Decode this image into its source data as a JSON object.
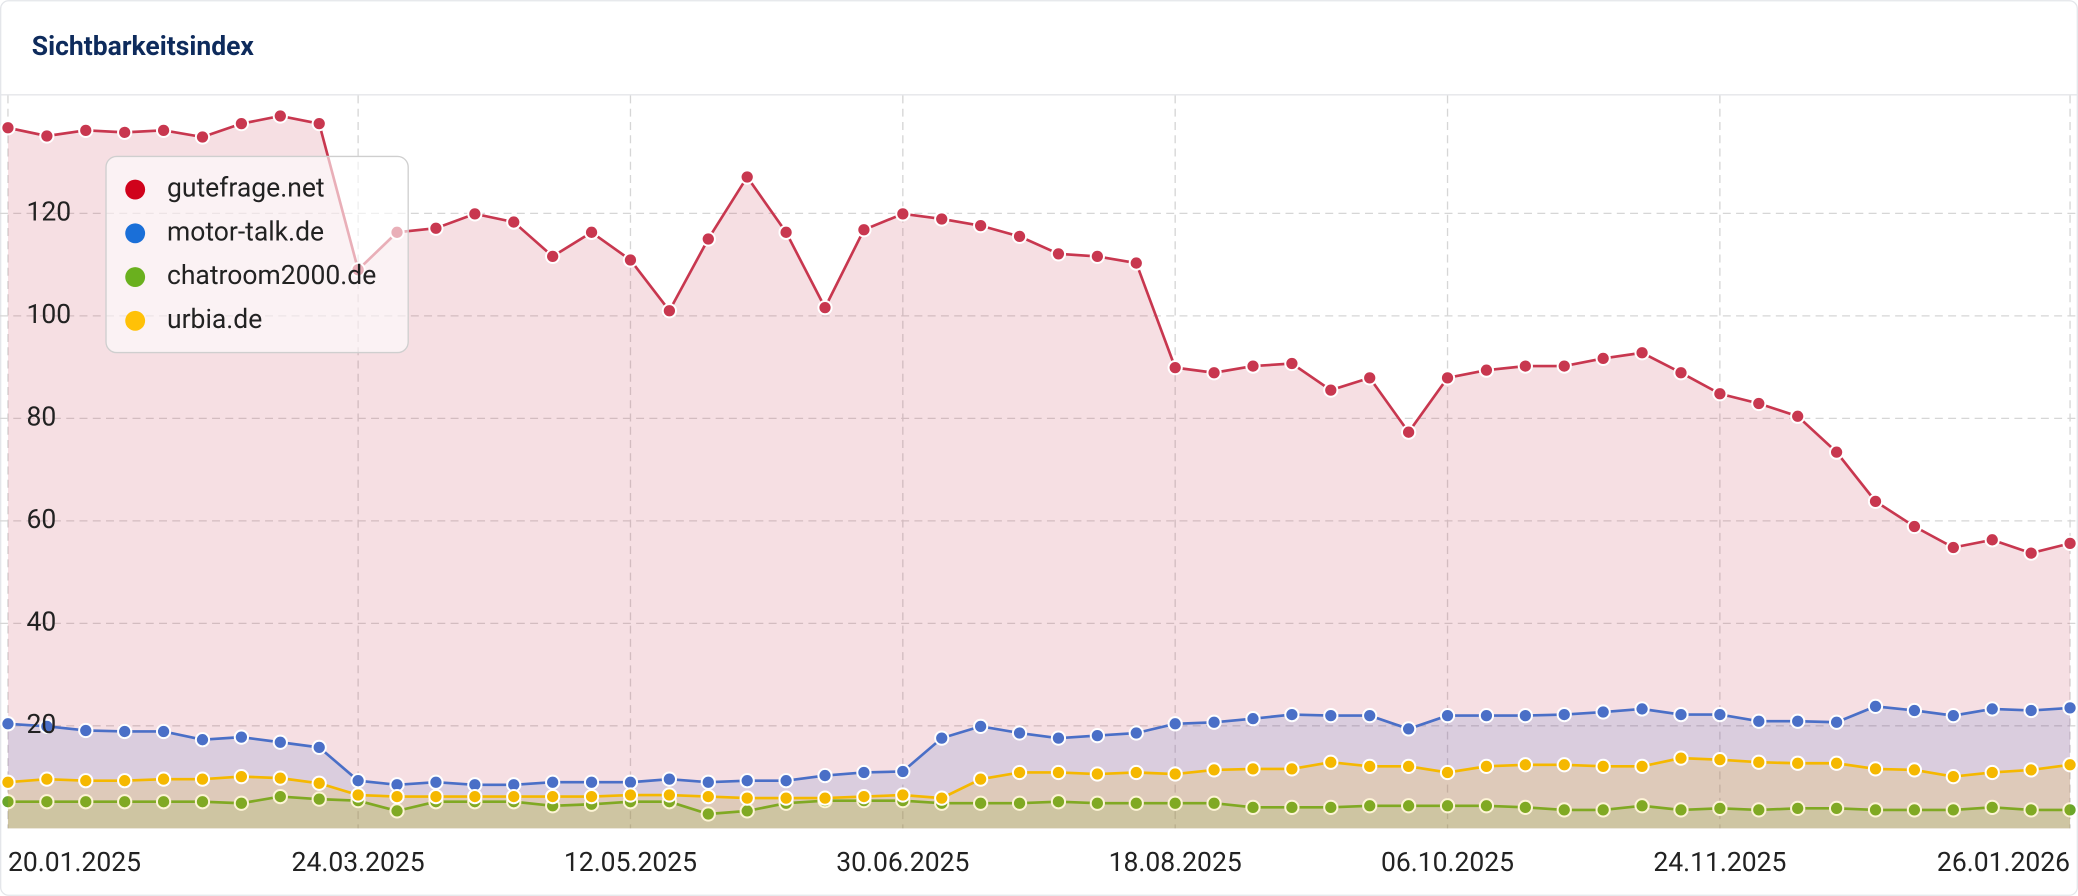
{
  "chart_data": {
    "type": "line",
    "title": "Sichtbarkeitsindex",
    "x": [
      "20.01.2025",
      "27.01.2025",
      "03.02.2025",
      "10.02.2025",
      "17.02.2025",
      "24.02.2025",
      "03.03.2025",
      "10.03.2025",
      "17.03.2025",
      "24.03.2025",
      "31.03.2025",
      "07.04.2025",
      "14.04.2025",
      "21.04.2025",
      "28.04.2025",
      "05.05.2025",
      "12.05.2025",
      "19.05.2025",
      "26.05.2025",
      "02.06.2025",
      "09.06.2025",
      "16.06.2025",
      "23.06.2025",
      "30.06.2025",
      "07.07.2025",
      "14.07.2025",
      "21.07.2025",
      "28.07.2025",
      "04.08.2025",
      "11.08.2025",
      "18.08.2025",
      "25.08.2025",
      "01.09.2025",
      "08.09.2025",
      "15.09.2025",
      "22.09.2025",
      "29.09.2025",
      "06.10.2025",
      "13.10.2025",
      "20.10.2025",
      "27.10.2025",
      "03.11.2025",
      "10.11.2025",
      "17.11.2025",
      "24.11.2025",
      "01.12.2025",
      "08.12.2025",
      "15.12.2025",
      "22.12.2025",
      "29.12.2025",
      "05.01.2026",
      "12.01.2026",
      "19.01.2026",
      "26.01.2026"
    ],
    "xlim": [
      "20.01.2025",
      "26.01.2026"
    ],
    "xticks": [
      "20.01.2025",
      "24.03.2025",
      "12.05.2025",
      "30.06.2025",
      "18.08.2025",
      "06.10.2025",
      "24.11.2025",
      "26.01.2026"
    ],
    "ylim": [
      0,
      143
    ],
    "yticks": [
      20,
      40,
      60,
      80,
      100,
      120
    ],
    "grid": true,
    "legend": "upper left",
    "series": [
      {
        "name": "gutefrage.net",
        "color": "#c8374f",
        "legend_color": "#d0021b",
        "values": [
          136.7,
          135.1,
          136.2,
          135.8,
          136.2,
          134.9,
          137.5,
          139.0,
          137.5,
          109.0,
          116.3,
          117.1,
          119.9,
          118.3,
          111.6,
          116.3,
          110.9,
          101.0,
          115.0,
          127.1,
          116.3,
          101.6,
          116.8,
          119.9,
          118.9,
          117.6,
          115.5,
          112.1,
          111.6,
          110.3,
          89.9,
          88.9,
          90.2,
          90.7,
          85.5,
          87.9,
          77.3,
          87.9,
          89.4,
          90.2,
          90.2,
          91.7,
          92.8,
          88.9,
          84.8,
          82.9,
          80.4,
          73.4,
          63.8,
          58.9,
          54.8,
          56.3,
          53.7,
          55.6
        ]
      },
      {
        "name": "motor-talk.de",
        "color": "#4a6fc7",
        "legend_color": "#1a6fd8",
        "values": [
          20.4,
          19.9,
          19.1,
          18.9,
          18.9,
          17.3,
          17.8,
          16.8,
          15.8,
          9.3,
          8.5,
          9.0,
          8.5,
          8.5,
          9.0,
          9.0,
          9.0,
          9.6,
          9.0,
          9.3,
          9.3,
          10.3,
          10.9,
          11.1,
          17.6,
          19.9,
          18.6,
          17.6,
          18.1,
          18.6,
          20.4,
          20.7,
          21.4,
          22.2,
          22.0,
          22.0,
          19.4,
          22.0,
          22.0,
          22.0,
          22.2,
          22.7,
          23.3,
          22.2,
          22.2,
          20.9,
          20.9,
          20.7,
          23.8,
          23.0,
          22.0,
          23.3,
          23.0,
          23.5
        ]
      },
      {
        "name": "chatroom2000.de",
        "color": "#6aa62a",
        "legend_color": "#6ab01e",
        "values": [
          5.2,
          5.2,
          5.2,
          5.2,
          5.2,
          5.2,
          4.9,
          6.2,
          5.7,
          5.4,
          3.4,
          5.2,
          5.2,
          5.2,
          4.4,
          4.7,
          5.2,
          5.2,
          2.8,
          3.4,
          4.9,
          5.4,
          5.4,
          5.4,
          4.9,
          4.9,
          4.9,
          5.2,
          4.9,
          4.9,
          4.9,
          4.9,
          4.1,
          4.1,
          4.1,
          4.4,
          4.4,
          4.4,
          4.4,
          4.1,
          3.6,
          3.6,
          4.4,
          3.6,
          3.9,
          3.6,
          3.9,
          3.9,
          3.6,
          3.6,
          3.6,
          4.1,
          3.6,
          3.6
        ]
      },
      {
        "name": "urbia.de",
        "color": "#f5b800",
        "legend_color": "#ffc107",
        "values": [
          9.0,
          9.6,
          9.3,
          9.3,
          9.6,
          9.6,
          10.1,
          9.8,
          8.8,
          6.5,
          6.2,
          6.2,
          6.2,
          6.2,
          6.2,
          6.2,
          6.5,
          6.5,
          6.2,
          5.9,
          5.9,
          5.9,
          6.2,
          6.5,
          5.9,
          9.6,
          10.9,
          10.9,
          10.6,
          10.9,
          10.6,
          11.4,
          11.6,
          11.6,
          12.9,
          12.1,
          12.1,
          10.9,
          12.1,
          12.4,
          12.4,
          12.1,
          12.1,
          13.7,
          13.4,
          12.9,
          12.7,
          12.7,
          11.6,
          11.4,
          10.1,
          10.9,
          11.4,
          12.4
        ]
      }
    ]
  }
}
